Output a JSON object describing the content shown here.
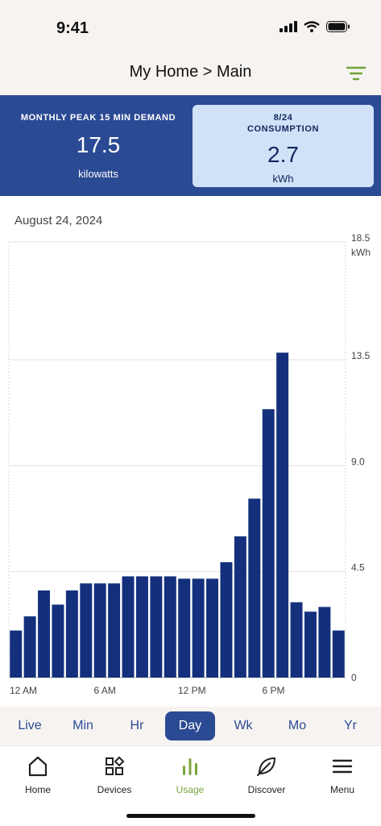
{
  "status_bar": {
    "time": "9:41"
  },
  "header": {
    "title": "My Home > Main",
    "filter_icon": "filter-icon"
  },
  "summary": {
    "peak": {
      "label": "MONTHLY PEAK 15 MIN DEMAND",
      "value": "17.5",
      "unit": "kilowatts"
    },
    "consumption": {
      "date": "8/24",
      "label": "CONSUMPTION",
      "value": "2.7",
      "unit": "kWh"
    }
  },
  "chart_title_date": "August 24, 2024",
  "chart_data": {
    "type": "bar",
    "title": "",
    "unit_label": "kWh",
    "ylim": [
      0,
      18.5
    ],
    "y_ticks": [
      "18.5",
      "13.5",
      "9.0",
      "4.5",
      "0"
    ],
    "y_tick_values": [
      18.5,
      13.5,
      9.0,
      4.5,
      0
    ],
    "x_tick_labels": [
      "12 AM",
      "6 AM",
      "12 PM",
      "6 PM"
    ],
    "x_tick_indices": [
      0,
      6,
      12,
      18
    ],
    "categories": [
      "12 AM",
      "1 AM",
      "2 AM",
      "3 AM",
      "4 AM",
      "5 AM",
      "6 AM",
      "7 AM",
      "8 AM",
      "9 AM",
      "10 AM",
      "11 AM",
      "12 PM",
      "1 PM",
      "2 PM",
      "3 PM",
      "4 PM",
      "5 PM",
      "6 PM",
      "7 PM",
      "8 PM",
      "9 PM",
      "10 PM",
      "11 PM"
    ],
    "values": [
      2.0,
      2.6,
      3.7,
      3.1,
      3.7,
      4.0,
      4.0,
      4.0,
      4.3,
      4.3,
      4.3,
      4.3,
      4.2,
      4.2,
      4.2,
      4.9,
      6.0,
      7.6,
      11.4,
      13.8,
      3.2,
      2.8,
      3.0,
      2.0
    ],
    "bar_color": "#14307d",
    "grid": true
  },
  "periods": [
    {
      "label": "Live",
      "active": false
    },
    {
      "label": "Min",
      "active": false
    },
    {
      "label": "Hr",
      "active": false
    },
    {
      "label": "Day",
      "active": true
    },
    {
      "label": "Wk",
      "active": false
    },
    {
      "label": "Mo",
      "active": false
    },
    {
      "label": "Yr",
      "active": false
    }
  ],
  "nav": [
    {
      "label": "Home",
      "icon": "home-icon",
      "active": false
    },
    {
      "label": "Devices",
      "icon": "devices-icon",
      "active": false
    },
    {
      "label": "Usage",
      "icon": "usage-icon",
      "active": true
    },
    {
      "label": "Discover",
      "icon": "leaf-icon",
      "active": false
    },
    {
      "label": "Menu",
      "icon": "menu-icon",
      "active": false
    }
  ],
  "colors": {
    "brand_blue": "#2b4a94",
    "accent_green": "#7aa63c",
    "light_card": "#cfe2f7"
  }
}
